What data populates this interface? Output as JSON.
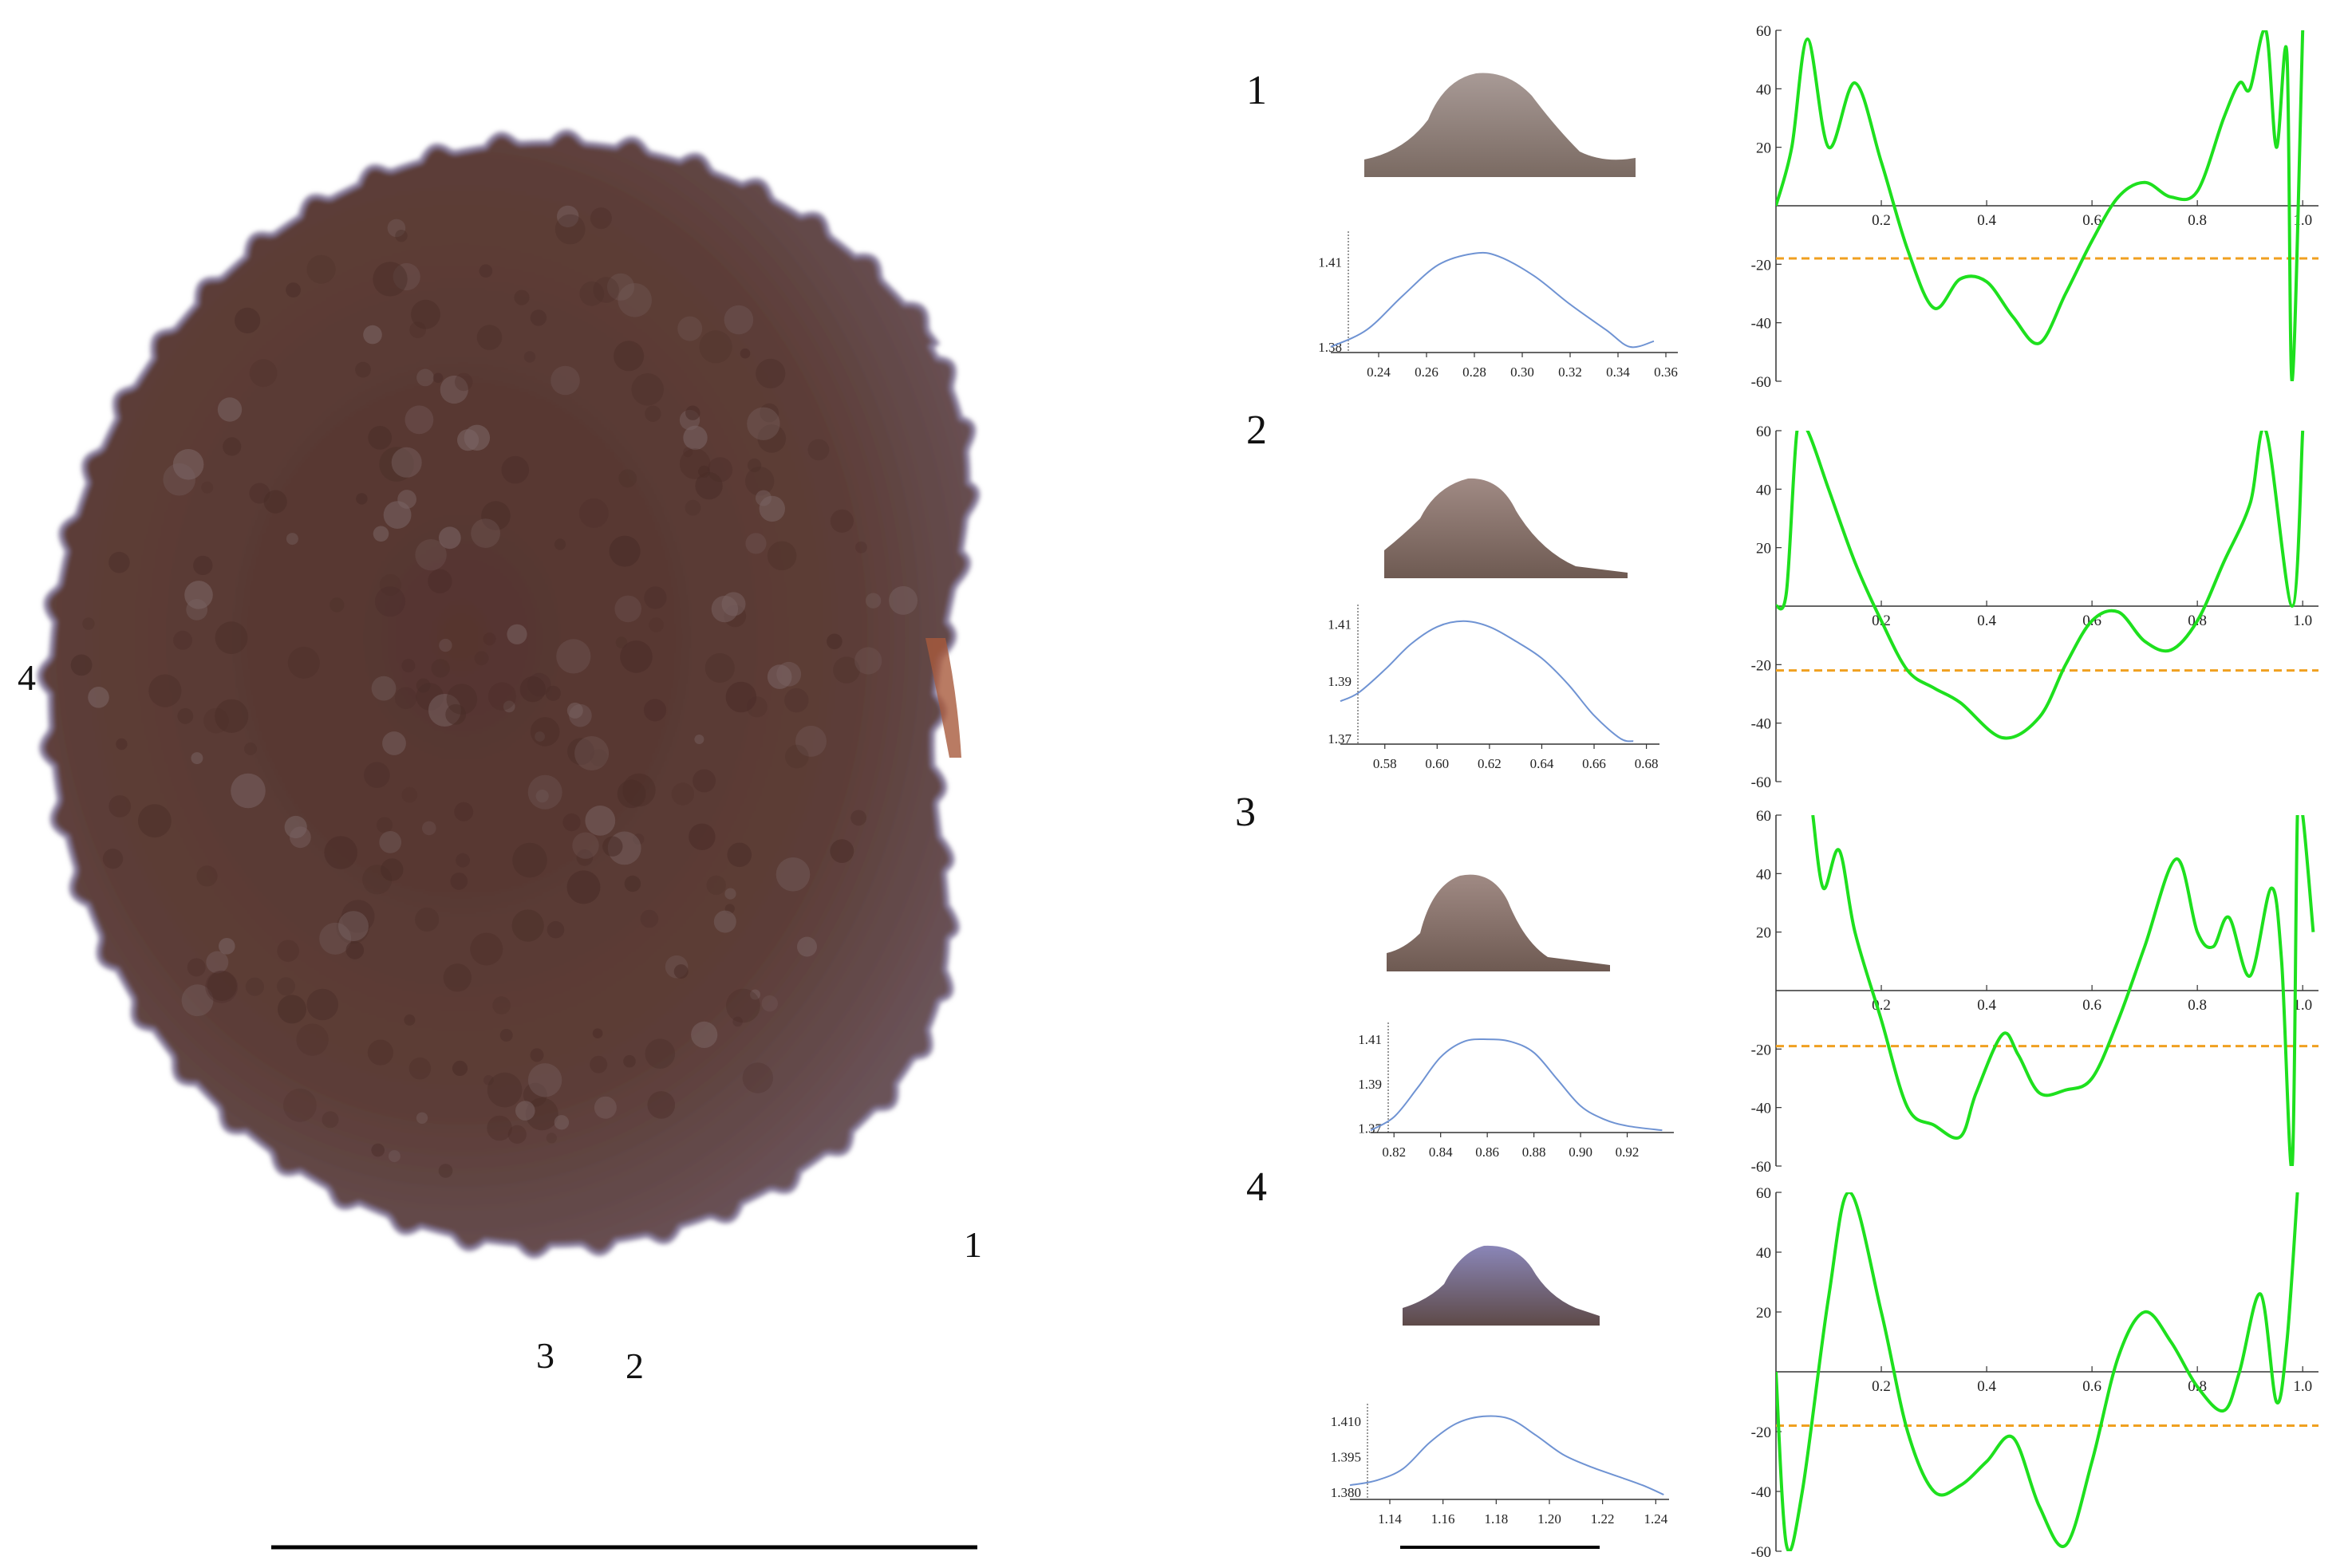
{
  "colors": {
    "background": "#ffffff",
    "spore_body": "#5a3b35",
    "spore_edge": "#8a7f9e",
    "profile_line": "#6f93d3",
    "curvature_line": "#1ee01e",
    "threshold_line": "#f0a020",
    "axis": "#333333",
    "scale_bar": "#000000"
  },
  "figure": {
    "image_labels": [
      {
        "id": "1",
        "text": "1"
      },
      {
        "id": "2",
        "text": "2"
      },
      {
        "id": "3",
        "text": "3"
      },
      {
        "id": "4",
        "text": "4"
      }
    ],
    "scale_bar_present": true
  },
  "chart_data": [
    {
      "row": "1",
      "type": "line",
      "role": "profile",
      "title": "",
      "xlabel": "",
      "ylabel": "",
      "xlim": [
        0.22,
        0.365
      ],
      "ylim": [
        1.378,
        1.418
      ],
      "xticks": [
        0.24,
        0.26,
        0.28,
        0.3,
        0.32,
        0.34,
        0.36
      ],
      "yticks": [
        1.38,
        1.41
      ],
      "series": [
        {
          "x": [
            0.22,
            0.235,
            0.25,
            0.265,
            0.28,
            0.29,
            0.305,
            0.32,
            0.335,
            0.345,
            0.355
          ],
          "y": [
            1.38,
            1.386,
            1.398,
            1.409,
            1.413,
            1.412,
            1.405,
            1.395,
            1.386,
            1.38,
            1.382
          ]
        }
      ]
    },
    {
      "row": "1",
      "type": "line",
      "role": "curvature",
      "title": "",
      "xlabel": "",
      "ylabel": "",
      "xlim": [
        0,
        1.03
      ],
      "ylim": [
        -60,
        60
      ],
      "xticks": [
        0.2,
        0.4,
        0.6,
        0.8,
        1.0
      ],
      "yticks": [
        60,
        40,
        20,
        -20,
        -40,
        -60
      ],
      "threshold": -18,
      "series": [
        {
          "x": [
            0.0,
            0.03,
            0.06,
            0.1,
            0.15,
            0.2,
            0.25,
            0.3,
            0.35,
            0.4,
            0.45,
            0.5,
            0.55,
            0.6,
            0.65,
            0.7,
            0.75,
            0.8,
            0.85,
            0.88,
            0.9,
            0.93,
            0.95,
            0.97,
            0.98,
            1.0
          ],
          "y": [
            0,
            20,
            57,
            20,
            42,
            15,
            -15,
            -35,
            -25,
            -26,
            -38,
            -47,
            -30,
            -12,
            3,
            8,
            3,
            5,
            30,
            42,
            40,
            60,
            20,
            52,
            -60,
            60
          ]
        }
      ]
    },
    {
      "row": "2",
      "type": "line",
      "role": "profile",
      "title": "",
      "xlabel": "",
      "ylabel": "",
      "xlim": [
        0.563,
        0.685
      ],
      "ylim": [
        1.368,
        1.414
      ],
      "xticks": [
        0.58,
        0.6,
        0.62,
        0.64,
        0.66,
        0.68
      ],
      "yticks": [
        1.37,
        1.39,
        1.41
      ],
      "series": [
        {
          "x": [
            0.563,
            0.57,
            0.58,
            0.59,
            0.6,
            0.61,
            0.62,
            0.63,
            0.64,
            0.65,
            0.66,
            0.67,
            0.675
          ],
          "y": [
            1.383,
            1.386,
            1.394,
            1.403,
            1.409,
            1.411,
            1.409,
            1.404,
            1.398,
            1.389,
            1.378,
            1.37,
            1.369
          ]
        }
      ]
    },
    {
      "row": "2",
      "type": "line",
      "role": "curvature",
      "title": "",
      "xlabel": "",
      "ylabel": "",
      "xlim": [
        0,
        1.03
      ],
      "ylim": [
        -60,
        60
      ],
      "xticks": [
        0.2,
        0.4,
        0.6,
        0.8,
        1.0
      ],
      "yticks": [
        60,
        40,
        20,
        -20,
        -40,
        -60
      ],
      "threshold": -22,
      "series": [
        {
          "x": [
            0.0,
            0.02,
            0.04,
            0.06,
            0.1,
            0.15,
            0.2,
            0.25,
            0.3,
            0.35,
            0.43,
            0.5,
            0.55,
            0.6,
            0.65,
            0.7,
            0.75,
            0.8,
            0.85,
            0.9,
            0.93,
            0.98,
            1.0
          ],
          "y": [
            0,
            5,
            60,
            60,
            40,
            15,
            -5,
            -22,
            -28,
            -33,
            -45,
            -38,
            -20,
            -5,
            -2,
            -12,
            -15,
            -5,
            15,
            35,
            60,
            0,
            60
          ]
        }
      ]
    },
    {
      "row": "3",
      "type": "line",
      "role": "profile",
      "title": "",
      "xlabel": "",
      "ylabel": "",
      "xlim": [
        0.81,
        0.94
      ],
      "ylim": [
        1.368,
        1.414
      ],
      "xticks": [
        0.82,
        0.84,
        0.86,
        0.88,
        0.9,
        0.92
      ],
      "yticks": [
        1.37,
        1.39,
        1.41
      ],
      "series": [
        {
          "x": [
            0.81,
            0.82,
            0.83,
            0.84,
            0.85,
            0.86,
            0.87,
            0.88,
            0.89,
            0.9,
            0.91,
            0.92,
            0.935
          ],
          "y": [
            1.369,
            1.375,
            1.388,
            1.402,
            1.409,
            1.41,
            1.409,
            1.404,
            1.392,
            1.38,
            1.374,
            1.371,
            1.369
          ]
        }
      ]
    },
    {
      "row": "3",
      "type": "line",
      "role": "curvature",
      "title": "",
      "xlabel": "",
      "ylabel": "",
      "xlim": [
        0,
        1.03
      ],
      "ylim": [
        -60,
        60
      ],
      "xticks": [
        0.2,
        0.4,
        0.6,
        0.8,
        1.0
      ],
      "yticks": [
        60,
        40,
        20,
        -20,
        -40,
        -60
      ],
      "threshold": -19,
      "series": [
        {
          "x": [
            0.07,
            0.09,
            0.12,
            0.15,
            0.2,
            0.25,
            0.3,
            0.35,
            0.38,
            0.43,
            0.46,
            0.5,
            0.55,
            0.6,
            0.65,
            0.7,
            0.76,
            0.8,
            0.83,
            0.86,
            0.9,
            0.94,
            0.96,
            0.98,
            0.99,
            1.0,
            1.02
          ],
          "y": [
            60,
            35,
            48,
            20,
            -10,
            -40,
            -46,
            -50,
            -35,
            -15,
            -22,
            -35,
            -34,
            -30,
            -10,
            15,
            45,
            20,
            15,
            25,
            5,
            35,
            10,
            -60,
            60,
            60,
            20
          ]
        }
      ]
    },
    {
      "row": "4",
      "type": "line",
      "role": "profile",
      "title": "",
      "xlabel": "",
      "ylabel": "",
      "xlim": [
        1.125,
        1.245
      ],
      "ylim": [
        1.377,
        1.414
      ],
      "xticks": [
        1.14,
        1.16,
        1.18,
        1.2,
        1.22,
        1.24
      ],
      "yticks": [
        1.38,
        1.395,
        1.41
      ],
      "series": [
        {
          "x": [
            1.125,
            1.135,
            1.145,
            1.155,
            1.165,
            1.175,
            1.185,
            1.195,
            1.205,
            1.215,
            1.225,
            1.235,
            1.243
          ],
          "y": [
            1.383,
            1.385,
            1.39,
            1.401,
            1.409,
            1.412,
            1.411,
            1.404,
            1.396,
            1.391,
            1.387,
            1.383,
            1.379
          ]
        }
      ]
    },
    {
      "row": "4",
      "type": "line",
      "role": "curvature",
      "title": "",
      "xlabel": "",
      "ylabel": "",
      "xlim": [
        0,
        1.03
      ],
      "ylim": [
        -60,
        60
      ],
      "xticks": [
        0.2,
        0.4,
        0.6,
        0.8,
        1.0
      ],
      "yticks": [
        60,
        40,
        20,
        -20,
        -40,
        -60
      ],
      "threshold": -18,
      "series": [
        {
          "x": [
            0.0,
            0.02,
            0.05,
            0.1,
            0.14,
            0.2,
            0.25,
            0.3,
            0.35,
            0.4,
            0.45,
            0.5,
            0.55,
            0.6,
            0.65,
            0.7,
            0.75,
            0.8,
            0.85,
            0.88,
            0.92,
            0.95,
            0.97,
            0.99
          ],
          "y": [
            0,
            -58,
            -40,
            25,
            60,
            20,
            -20,
            -40,
            -38,
            -30,
            -22,
            -45,
            -58,
            -30,
            5,
            20,
            10,
            -5,
            -13,
            0,
            26,
            -10,
            10,
            60
          ]
        }
      ]
    }
  ]
}
